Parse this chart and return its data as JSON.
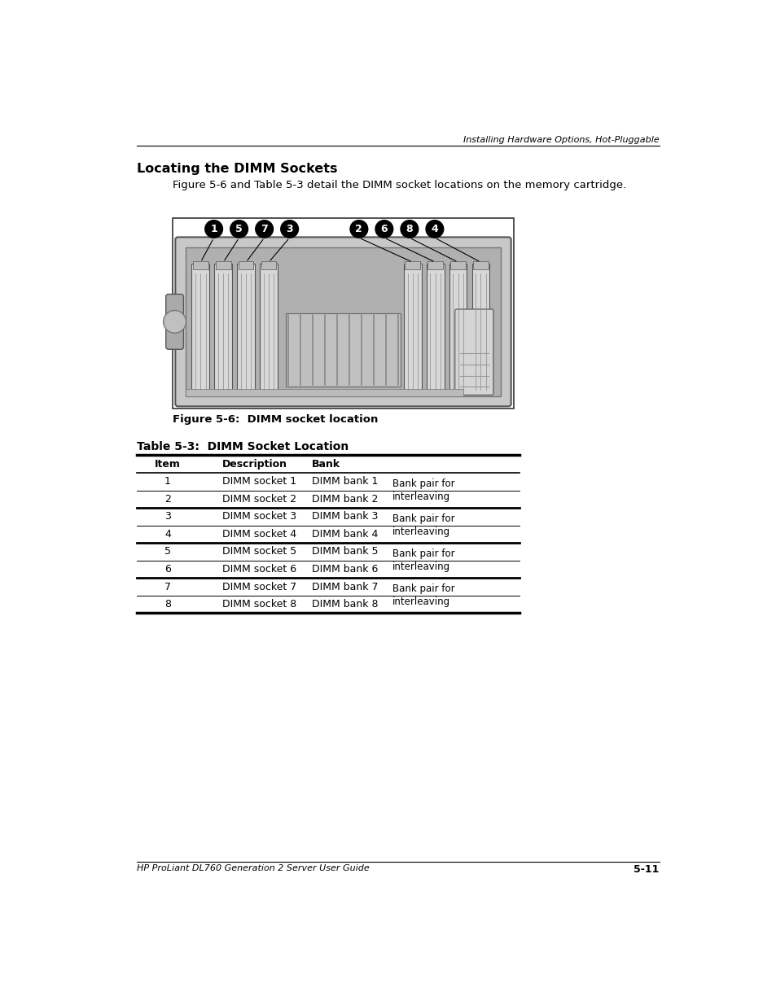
{
  "page_title_italic": "Installing Hardware Options, Hot-Pluggable",
  "section_title": "Locating the DIMM Sockets",
  "intro_text": "Figure 5-6 and Table 5-3 detail the DIMM socket locations on the memory cartridge.",
  "figure_caption": "Figure 5-6:  DIMM socket location",
  "table_title": "Table 5-3:  DIMM Socket Location",
  "table_headers": [
    "Item",
    "Description",
    "Bank"
  ],
  "table_rows": [
    [
      "1",
      "DIMM socket 1",
      "DIMM bank 1"
    ],
    [
      "2",
      "DIMM socket 2",
      "DIMM bank 2"
    ],
    [
      "3",
      "DIMM socket 3",
      "DIMM bank 3"
    ],
    [
      "4",
      "DIMM socket 4",
      "DIMM bank 4"
    ],
    [
      "5",
      "DIMM socket 5",
      "DIMM bank 5"
    ],
    [
      "6",
      "DIMM socket 6",
      "DIMM bank 6"
    ],
    [
      "7",
      "DIMM socket 7",
      "DIMM bank 7"
    ],
    [
      "8",
      "DIMM socket 8",
      "DIMM bank 8"
    ]
  ],
  "bank_pair_text": "Bank pair for\ninterleaving",
  "footer_left": "HP ProLiant DL760 Generation 2 Server User Guide",
  "footer_right": "5-11",
  "bg_color": "#ffffff",
  "text_color": "#000000",
  "dimm_numbers_left": [
    "1",
    "5",
    "7",
    "3"
  ],
  "dimm_numbers_right": [
    "2",
    "6",
    "8",
    "4"
  ]
}
